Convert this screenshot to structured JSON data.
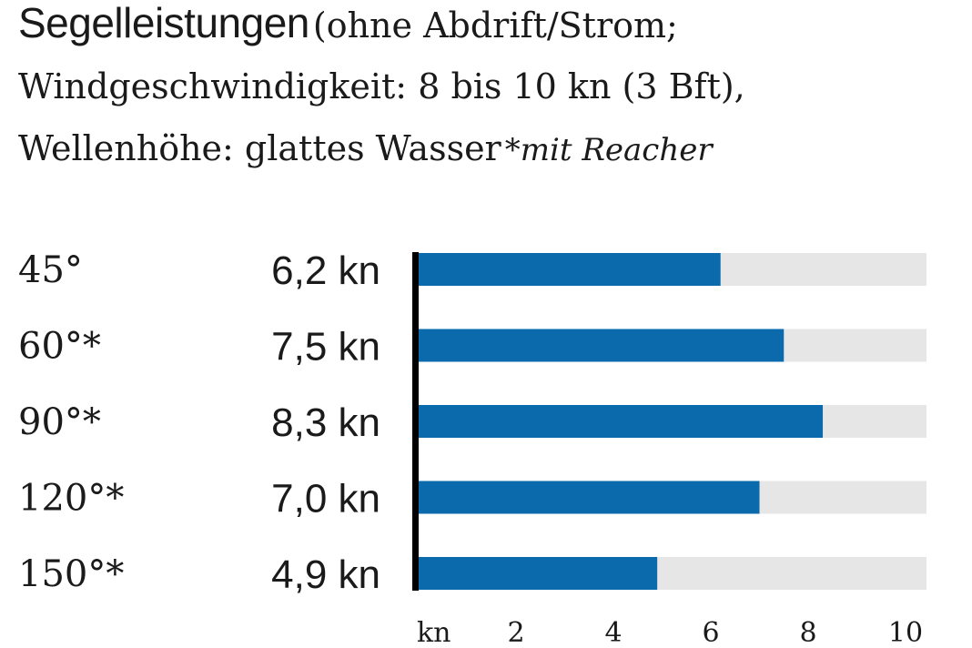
{
  "header": {
    "title": "Segelleistungen",
    "line1_rest": "(ohne Abdrift/Strom;",
    "line2": "Windgeschwindigkeit: 8 bis 10 kn (3 Bft),",
    "line3": "Wellenhöhe: glattes Wasser",
    "footnote": "*mit Reacher"
  },
  "chart_data": {
    "type": "bar",
    "orientation": "horizontal",
    "categories": [
      "45°",
      "60°*",
      "90°*",
      "120°*",
      "150°*"
    ],
    "values": [
      6.2,
      7.5,
      8.3,
      7.0,
      4.9
    ],
    "value_labels": [
      "6,2 kn",
      "7,5 kn",
      "8,3 kn",
      "7,0 kn",
      "4,9 kn"
    ],
    "xlim": [
      0,
      10.5
    ],
    "xticks": [
      2,
      4,
      6,
      8,
      10
    ],
    "xtick_labels": [
      "2",
      "4",
      "6",
      "8",
      "10"
    ],
    "xlabel": "kn",
    "colors": {
      "bar": "#0a6aab",
      "track": "#e6e6e6",
      "axis": "#000000"
    }
  }
}
